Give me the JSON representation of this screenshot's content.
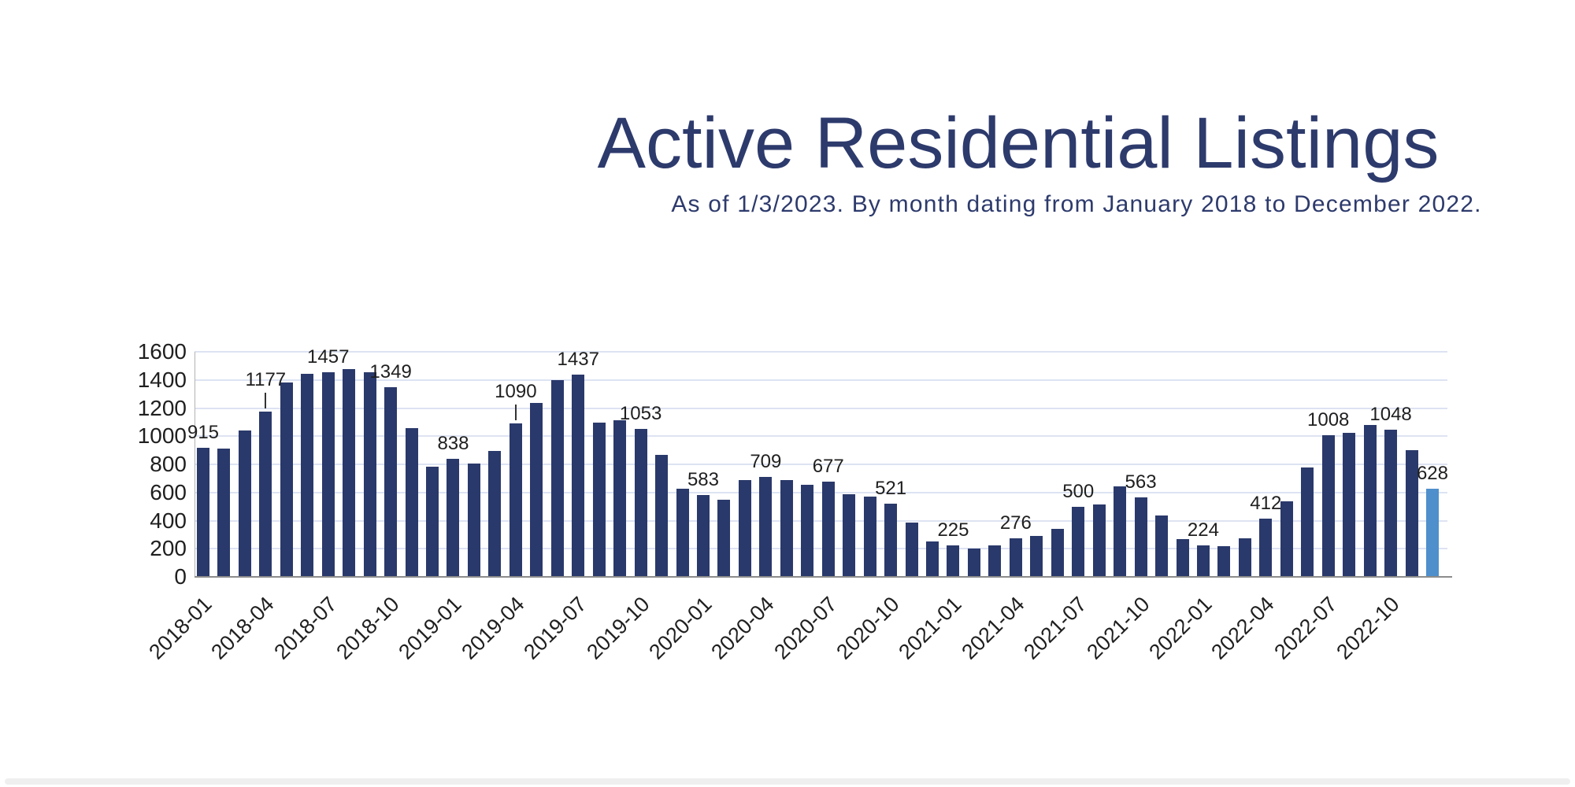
{
  "header": {
    "title": "Active Residential Listings",
    "subtitle": "As of 1/3/2023. By month dating from January 2018 to December 2022."
  },
  "chart_data": {
    "type": "bar",
    "title": "Active Residential Listings",
    "subtitle": "As of 1/3/2023. By month dating from January 2018 to December 2022.",
    "categories": [
      "2018-01",
      "2018-02",
      "2018-03",
      "2018-04",
      "2018-05",
      "2018-06",
      "2018-07",
      "2018-08",
      "2018-09",
      "2018-10",
      "2018-11",
      "2018-12",
      "2019-01",
      "2019-02",
      "2019-03",
      "2019-04",
      "2019-05",
      "2019-06",
      "2019-07",
      "2019-08",
      "2019-09",
      "2019-10",
      "2019-11",
      "2019-12",
      "2020-01",
      "2020-02",
      "2020-03",
      "2020-04",
      "2020-05",
      "2020-06",
      "2020-07",
      "2020-08",
      "2020-09",
      "2020-10",
      "2020-11",
      "2020-12",
      "2021-01",
      "2021-02",
      "2021-03",
      "2021-04",
      "2021-05",
      "2021-06",
      "2021-07",
      "2021-08",
      "2021-09",
      "2021-10",
      "2021-11",
      "2021-12",
      "2022-01",
      "2022-02",
      "2022-03",
      "2022-04",
      "2022-05",
      "2022-06",
      "2022-07",
      "2022-08",
      "2022-09",
      "2022-10",
      "2022-11",
      "2022-12"
    ],
    "values": [
      915,
      912,
      1041,
      1177,
      1384,
      1445,
      1457,
      1476,
      1452,
      1349,
      1059,
      785,
      838,
      804,
      895,
      1090,
      1234,
      1396,
      1437,
      1094,
      1112,
      1053,
      866,
      624,
      583,
      548,
      690,
      709,
      690,
      652,
      677,
      588,
      570,
      521,
      385,
      251,
      225,
      202,
      222,
      276,
      291,
      344,
      500,
      517,
      642,
      563,
      439,
      269,
      224,
      218,
      272,
      412,
      539,
      779,
      1008,
      1026,
      1081,
      1048,
      900,
      628
    ],
    "labeled_indices": [
      0,
      3,
      6,
      9,
      12,
      15,
      18,
      21,
      24,
      27,
      30,
      33,
      36,
      39,
      42,
      45,
      48,
      51,
      54,
      57,
      59
    ],
    "data_label_texts": [
      "915",
      "1177",
      "1457",
      "1349",
      "838",
      "1090",
      "1437",
      "1053",
      "583",
      "709",
      "677",
      "521",
      "225",
      "276",
      "500",
      "563",
      "224",
      "412",
      "1008",
      "1048",
      "628"
    ],
    "leader_line_indices": [
      3,
      15
    ],
    "highlight_index": 59,
    "y_ticks": [
      "0",
      "200",
      "400",
      "600",
      "800",
      "1000",
      "1200",
      "1400",
      "1600"
    ],
    "ylim": [
      0,
      1600
    ],
    "x_tick_labels": [
      "2018-01",
      "2018-04",
      "2018-07",
      "2018-10",
      "2019-01",
      "2019-04",
      "2019-07",
      "2019-10",
      "2020-01",
      "2020-04",
      "2020-07",
      "2020-10",
      "2021-01",
      "2021-04",
      "2021-07",
      "2021-10",
      "2022-01",
      "2022-04",
      "2022-07",
      "2022-10"
    ],
    "x_tick_every": 3,
    "grid": "horizontal",
    "legend": "none",
    "colors": {
      "bar": "#2a396b",
      "highlight_bar": "#4f8fcc",
      "grid": "#dde3f2",
      "baseline_axis": "#8c8c8c",
      "y_axis_line": "#b3b3b3",
      "tick_text": "#1f1f1f",
      "data_label_text": "#1f1f1f",
      "title_text": "#2d3a6c"
    }
  }
}
